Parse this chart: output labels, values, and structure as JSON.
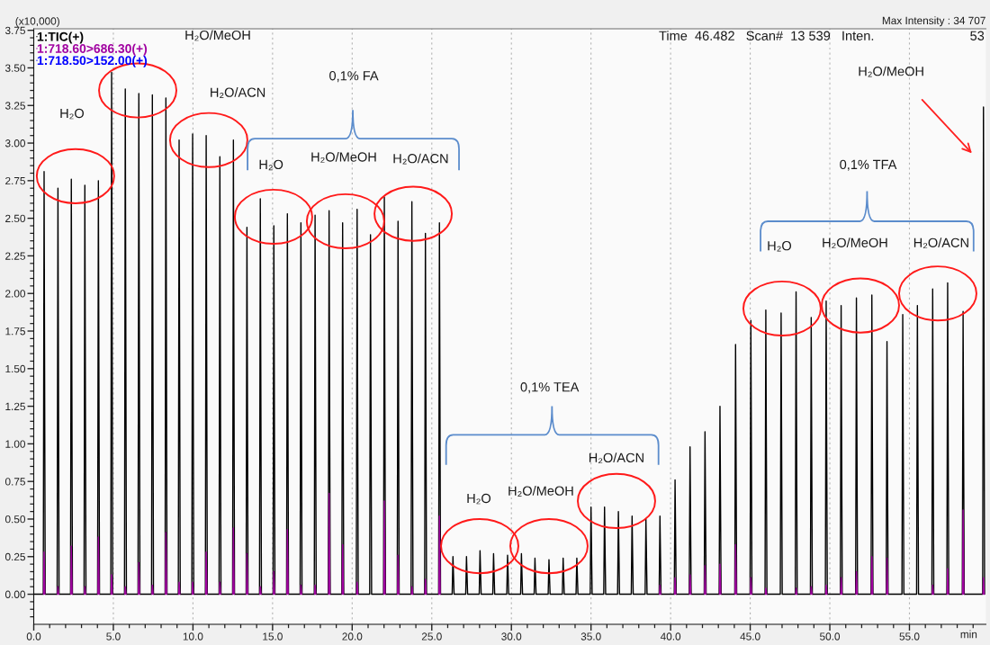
{
  "chart_data": {
    "type": "line",
    "xlim": [
      0,
      59.8
    ],
    "ylim": [
      -0.2,
      3.76
    ],
    "xticks": [
      {
        "value": 0,
        "label": "0.0"
      },
      {
        "value": 5,
        "label": "5.0"
      },
      {
        "value": 10,
        "label": "10.0"
      },
      {
        "value": 15,
        "label": "15.0"
      },
      {
        "value": 20,
        "label": "20.0"
      },
      {
        "value": 25,
        "label": "25.0"
      },
      {
        "value": 30,
        "label": "30.0"
      },
      {
        "value": 35,
        "label": "35.0"
      },
      {
        "value": 40,
        "label": "40.0"
      },
      {
        "value": 45,
        "label": "45.0"
      },
      {
        "value": 50,
        "label": "50.0"
      },
      {
        "value": 55,
        "label": "55.0"
      },
      {
        "value": 1,
        "label": null
      },
      {
        "value": 2,
        "label": null
      },
      {
        "value": 3,
        "label": null
      },
      {
        "value": 4,
        "label": null
      },
      {
        "value": 6,
        "label": null
      },
      {
        "value": 7,
        "label": null
      },
      {
        "value": 8,
        "label": null
      },
      {
        "value": 9,
        "label": null
      },
      {
        "value": 11,
        "label": null
      },
      {
        "value": 12,
        "label": null
      },
      {
        "value": 13,
        "label": null
      },
      {
        "value": 14,
        "label": null
      },
      {
        "value": 16,
        "label": null
      },
      {
        "value": 17,
        "label": null
      },
      {
        "value": 18,
        "label": null
      },
      {
        "value": 19,
        "label": null
      },
      {
        "value": 21,
        "label": null
      },
      {
        "value": 22,
        "label": null
      },
      {
        "value": 23,
        "label": null
      },
      {
        "value": 24,
        "label": null
      },
      {
        "value": 26,
        "label": null
      },
      {
        "value": 27,
        "label": null
      },
      {
        "value": 28,
        "label": null
      },
      {
        "value": 29,
        "label": null
      },
      {
        "value": 31,
        "label": null
      },
      {
        "value": 32,
        "label": null
      },
      {
        "value": 33,
        "label": null
      },
      {
        "value": 34,
        "label": null
      },
      {
        "value": 36,
        "label": null
      },
      {
        "value": 37,
        "label": null
      },
      {
        "value": 38,
        "label": null
      },
      {
        "value": 39,
        "label": null
      },
      {
        "value": 41,
        "label": null
      },
      {
        "value": 42,
        "label": null
      },
      {
        "value": 43,
        "label": null
      },
      {
        "value": 44,
        "label": null
      },
      {
        "value": 46,
        "label": null
      },
      {
        "value": 47,
        "label": null
      },
      {
        "value": 48,
        "label": null
      },
      {
        "value": 49,
        "label": null
      },
      {
        "value": 51,
        "label": null
      },
      {
        "value": 52,
        "label": null
      },
      {
        "value": 53,
        "label": null
      },
      {
        "value": 54,
        "label": null
      },
      {
        "value": 56,
        "label": null
      },
      {
        "value": 57,
        "label": null
      },
      {
        "value": 58,
        "label": null
      },
      {
        "value": 59,
        "label": null
      }
    ],
    "yticks": [
      {
        "value": 0,
        "label": "0.00"
      },
      {
        "value": 0.25,
        "label": "0.25"
      },
      {
        "value": 0.5,
        "label": "0.50"
      },
      {
        "value": 0.75,
        "label": "0.75"
      },
      {
        "value": 1,
        "label": "1.00"
      },
      {
        "value": 1.25,
        "label": "1.25"
      },
      {
        "value": 1.5,
        "label": "1.50"
      },
      {
        "value": 1.75,
        "label": "1.75"
      },
      {
        "value": 2,
        "label": "2.00"
      },
      {
        "value": 2.25,
        "label": "2.25"
      },
      {
        "value": 2.5,
        "label": "2.50"
      },
      {
        "value": 2.75,
        "label": "2.75"
      },
      {
        "value": 3,
        "label": "3.00"
      },
      {
        "value": 3.25,
        "label": "3.25"
      },
      {
        "value": 3.5,
        "label": "3.50"
      },
      {
        "value": 3.75,
        "label": "3.75"
      },
      {
        "value": -0.15,
        "label": null
      },
      {
        "value": -0.1,
        "label": null
      },
      {
        "value": -0.05,
        "label": null
      },
      {
        "value": 0.05,
        "label": null
      },
      {
        "value": 0.1,
        "label": null
      },
      {
        "value": 0.15,
        "label": null
      },
      {
        "value": 0.2,
        "label": null
      },
      {
        "value": 0.3,
        "label": null
      },
      {
        "value": 0.35,
        "label": null
      },
      {
        "value": 0.4,
        "label": null
      },
      {
        "value": 0.45,
        "label": null
      },
      {
        "value": 0.55,
        "label": null
      },
      {
        "value": 0.6,
        "label": null
      },
      {
        "value": 0.65,
        "label": null
      },
      {
        "value": 0.7,
        "label": null
      },
      {
        "value": 0.8,
        "label": null
      },
      {
        "value": 0.85,
        "label": null
      },
      {
        "value": 0.9,
        "label": null
      },
      {
        "value": 0.95,
        "label": null
      },
      {
        "value": 1.05,
        "label": null
      },
      {
        "value": 1.1,
        "label": null
      },
      {
        "value": 1.15,
        "label": null
      },
      {
        "value": 1.2,
        "label": null
      },
      {
        "value": 1.3,
        "label": null
      },
      {
        "value": 1.35,
        "label": null
      },
      {
        "value": 1.4,
        "label": null
      },
      {
        "value": 1.45,
        "label": null
      },
      {
        "value": 1.55,
        "label": null
      },
      {
        "value": 1.6,
        "label": null
      },
      {
        "value": 1.65,
        "label": null
      },
      {
        "value": 1.7,
        "label": null
      },
      {
        "value": 1.8,
        "label": null
      },
      {
        "value": 1.85,
        "label": null
      },
      {
        "value": 1.9,
        "label": null
      },
      {
        "value": 1.95,
        "label": null
      },
      {
        "value": 2.05,
        "label": null
      },
      {
        "value": 2.1,
        "label": null
      },
      {
        "value": 2.15,
        "label": null
      },
      {
        "value": 2.2,
        "label": null
      },
      {
        "value": 2.3,
        "label": null
      },
      {
        "value": 2.35,
        "label": null
      },
      {
        "value": 2.4,
        "label": null
      },
      {
        "value": 2.45,
        "label": null
      },
      {
        "value": 2.55,
        "label": null
      },
      {
        "value": 2.6,
        "label": null
      },
      {
        "value": 2.65,
        "label": null
      },
      {
        "value": 2.7,
        "label": null
      },
      {
        "value": 2.8,
        "label": null
      },
      {
        "value": 2.85,
        "label": null
      },
      {
        "value": 2.9,
        "label": null
      },
      {
        "value": 2.95,
        "label": null
      },
      {
        "value": 3.05,
        "label": null
      },
      {
        "value": 3.1,
        "label": null
      },
      {
        "value": 3.15,
        "label": null
      },
      {
        "value": 3.2,
        "label": null
      },
      {
        "value": 3.3,
        "label": null
      },
      {
        "value": 3.35,
        "label": null
      },
      {
        "value": 3.4,
        "label": null
      },
      {
        "value": 3.45,
        "label": null
      },
      {
        "value": 3.55,
        "label": null
      },
      {
        "value": 3.6,
        "label": null
      },
      {
        "value": 3.65,
        "label": null
      },
      {
        "value": 3.7,
        "label": null
      }
    ],
    "xlabel": "min",
    "ylabel": "(x10,000)",
    "grid": "x",
    "legend": "top left",
    "series": [
      {
        "name": "1:TIC(+)",
        "color": "#000000",
        "x": [
          0,
          0.6,
          0.65,
          0.72,
          1.47,
          1.52,
          1.59,
          2.31,
          2.36,
          2.43,
          3.16,
          3.21,
          3.28,
          4.01,
          4.06,
          4.13,
          4.84,
          4.89,
          4.96,
          5.7,
          5.75,
          5.82,
          6.55,
          6.6,
          6.67,
          7.4,
          7.45,
          7.52,
          8.25,
          8.3,
          8.37,
          9.08,
          9.13,
          9.2,
          9.93,
          9.98,
          10.05,
          10.78,
          10.83,
          10.9,
          11.64,
          11.69,
          11.76,
          12.49,
          12.54,
          12.61,
          13.34,
          13.39,
          13.46,
          14.18,
          14.23,
          14.3,
          15.03,
          15.08,
          15.15,
          15.88,
          15.93,
          16.0,
          16.73,
          16.78,
          16.85,
          17.62,
          17.67,
          17.74,
          18.5,
          18.55,
          18.62,
          19.35,
          19.4,
          19.47,
          20.26,
          20.31,
          20.38,
          21.1,
          21.15,
          21.22,
          21.97,
          22.02,
          22.09,
          22.83,
          22.88,
          22.95,
          23.7,
          23.75,
          23.82,
          24.55,
          24.6,
          24.67,
          25.43,
          25.48,
          25.55,
          26.28,
          26.33,
          26.4,
          27.13,
          27.18,
          27.25,
          27.98,
          28.03,
          28.1,
          28.83,
          28.88,
          28.95,
          29.71,
          29.76,
          29.83,
          30.58,
          30.63,
          30.7,
          31.43,
          31.48,
          31.55,
          32.31,
          32.36,
          32.43,
          33.2,
          33.25,
          33.32,
          34.06,
          34.11,
          34.18,
          34.95,
          35.0,
          35.07,
          35.8,
          35.85,
          35.92,
          36.67,
          36.72,
          36.79,
          37.53,
          37.58,
          37.65,
          38.4,
          38.45,
          38.52,
          39.28,
          39.33,
          39.4,
          40.23,
          40.28,
          40.35,
          41.17,
          41.22,
          41.29,
          42.11,
          42.16,
          42.23,
          43.05,
          43.1,
          43.17,
          44.03,
          44.08,
          44.15,
          44.99,
          45.04,
          45.11,
          45.93,
          45.98,
          46.05,
          46.89,
          46.94,
          47.01,
          47.83,
          47.88,
          47.95,
          48.78,
          48.83,
          48.9,
          49.72,
          49.77,
          49.84,
          50.66,
          50.71,
          50.78,
          51.62,
          51.67,
          51.74,
          52.59,
          52.64,
          52.71,
          53.54,
          53.59,
          53.66,
          54.53,
          54.58,
          54.65,
          55.45,
          55.5,
          55.57,
          56.41,
          56.46,
          56.53,
          57.35,
          57.4,
          57.47,
          58.32,
          58.37,
          58.44,
          59.6,
          59.65,
          59.72
        ],
        "values": [
          0,
          0,
          2.81,
          0,
          0,
          2.7,
          0,
          0,
          2.76,
          0,
          0,
          2.72,
          0,
          0,
          2.75,
          0,
          0,
          3.47,
          0,
          0,
          3.36,
          0,
          0,
          3.33,
          0,
          0,
          3.32,
          0,
          0,
          3.3,
          0,
          0,
          3.02,
          0,
          0,
          3.06,
          0,
          0,
          3.05,
          0,
          0,
          2.91,
          0,
          0,
          3.02,
          0,
          0,
          2.44,
          0,
          0,
          2.63,
          0,
          0,
          2.45,
          0,
          0,
          2.53,
          0,
          0,
          2.47,
          0,
          0,
          2.52,
          0,
          0,
          2.55,
          0,
          0,
          2.47,
          0,
          0,
          2.56,
          0,
          0,
          2.39,
          0,
          0,
          2.64,
          0,
          0,
          2.48,
          0,
          0,
          2.61,
          0,
          0,
          2.4,
          0,
          0,
          2.47,
          0,
          0,
          0.25,
          0,
          0,
          0.25,
          0,
          0,
          0.29,
          0,
          0,
          0.27,
          0,
          0,
          0.26,
          0,
          0,
          0.27,
          0,
          0,
          0.24,
          0,
          0,
          0.23,
          0,
          0,
          0.24,
          0,
          0,
          0.24,
          0,
          0,
          0.58,
          0,
          0,
          0.58,
          0,
          0,
          0.55,
          0,
          0,
          0.52,
          0,
          0,
          0.5,
          0,
          0,
          0.52,
          0,
          0,
          0.76,
          0,
          0,
          0.98,
          0,
          0,
          1.08,
          0,
          0,
          1.25,
          0,
          0,
          1.66,
          0,
          0,
          1.82,
          0,
          0,
          1.89,
          0,
          0,
          1.87,
          0,
          0,
          2.01,
          0,
          0,
          1.84,
          0,
          0,
          1.95,
          0,
          0,
          1.92,
          0,
          0,
          1.97,
          0,
          0,
          1.99,
          0,
          0,
          1.68,
          0,
          0,
          1.86,
          0,
          0,
          1.92,
          0,
          0,
          2.03,
          0,
          0,
          2.07,
          0,
          0,
          1.88,
          0,
          0,
          3.24,
          0
        ]
      },
      {
        "name": "1:718.60>686.30(+)",
        "color": "#a000a0",
        "x": [
          0.62,
          0.65,
          0.7,
          0.71,
          1.49,
          1.52,
          1.57,
          1.58,
          2.33,
          2.36,
          2.41,
          2.42,
          3.18,
          3.21,
          3.26,
          3.27,
          4.03,
          4.06,
          4.11,
          4.12,
          4.86,
          4.89,
          4.94,
          4.95,
          5.72,
          5.75,
          5.8,
          5.81,
          6.57,
          6.6,
          6.65,
          6.66,
          7.42,
          7.45,
          7.5,
          7.51,
          8.27,
          8.3,
          8.35,
          8.36,
          9.1,
          9.13,
          9.18,
          9.19,
          9.95,
          9.98,
          10.03,
          10.04,
          10.8,
          10.83,
          10.88,
          10.89,
          11.66,
          11.69,
          11.74,
          11.75,
          12.51,
          12.54,
          12.59,
          12.6,
          13.36,
          13.39,
          13.44,
          13.45,
          14.2,
          14.23,
          14.28,
          14.29,
          15.05,
          15.08,
          15.13,
          15.14,
          15.9,
          15.93,
          15.98,
          15.99,
          16.75,
          16.78,
          16.83,
          16.84,
          17.64,
          17.67,
          17.72,
          17.73,
          18.52,
          18.55,
          18.6,
          18.61,
          19.37,
          19.4,
          19.45,
          19.46,
          20.28,
          20.31,
          20.36,
          20.37,
          21.99,
          22.02,
          22.07,
          22.08,
          22.85,
          22.88,
          22.93,
          22.94,
          23.72,
          23.75,
          23.8,
          23.81,
          24.57,
          24.6,
          24.65,
          24.66,
          25.45,
          25.48,
          25.53,
          25.54,
          39.3,
          39.33,
          39.38,
          39.39,
          40.25,
          40.28,
          40.33,
          40.34,
          41.19,
          41.22,
          41.27,
          41.28,
          42.13,
          42.16,
          42.21,
          42.22,
          43.07,
          43.1,
          43.15,
          43.16,
          44.05,
          44.08,
          44.13,
          44.14,
          45.01,
          45.04,
          45.09,
          45.1,
          45.95,
          45.98,
          46.03,
          46.04,
          47.85,
          47.88,
          47.93,
          47.94,
          48.8,
          48.83,
          48.88,
          48.89,
          49.74,
          49.77,
          49.82,
          49.83,
          50.68,
          50.71,
          50.76,
          50.77,
          51.64,
          51.67,
          51.72,
          51.73,
          52.61,
          52.64,
          52.69,
          52.7,
          53.56,
          53.59,
          53.64,
          53.65,
          56.43,
          56.46,
          56.51,
          56.52,
          57.37,
          57.4,
          57.45,
          57.46,
          58.34,
          58.37,
          58.42,
          58.43,
          59.62,
          59.65,
          59.7
        ],
        "values": [
          0,
          0.28,
          0,
          null,
          0,
          0.05,
          0,
          null,
          0,
          0.32,
          0,
          null,
          0,
          0.05,
          0,
          null,
          0,
          0.38,
          0,
          null,
          0,
          0.13,
          0,
          null,
          0,
          0.05,
          0,
          null,
          0,
          0.21,
          0,
          null,
          0,
          0.06,
          0,
          null,
          0,
          0.41,
          0,
          null,
          0,
          0.08,
          0,
          null,
          0,
          0.08,
          0,
          null,
          0,
          0.28,
          0,
          null,
          0,
          0.08,
          0,
          null,
          0,
          0.44,
          0,
          null,
          0,
          0.27,
          0,
          null,
          0,
          0.05,
          0,
          null,
          0,
          0.15,
          0,
          null,
          0,
          0.43,
          0,
          null,
          0,
          0.06,
          0,
          null,
          0,
          0.06,
          0,
          null,
          0,
          0.67,
          0,
          null,
          0,
          0.33,
          0,
          null,
          0,
          0.08,
          0,
          null,
          0,
          0.62,
          0,
          null,
          0,
          0.26,
          0,
          null,
          0,
          0.05,
          0,
          null,
          0,
          0.1,
          0,
          null,
          0,
          0.52,
          0,
          null,
          0,
          0.06,
          0,
          null,
          0,
          0.11,
          0,
          null,
          0,
          0.13,
          0,
          null,
          0,
          0.19,
          0,
          null,
          0,
          0.2,
          0,
          null,
          0,
          0.33,
          0,
          null,
          0,
          0.11,
          0,
          null,
          0,
          0.04,
          0,
          null,
          0,
          0.04,
          0,
          null,
          0,
          0.05,
          0,
          null,
          0,
          0.06,
          0,
          null,
          0,
          0.11,
          0,
          null,
          0,
          0.15,
          0,
          null,
          0,
          0.25,
          0,
          null,
          0,
          0.24,
          0,
          null,
          0,
          0.06,
          0,
          null,
          0,
          0.17,
          0,
          null,
          0,
          0.56,
          0,
          null,
          0,
          0.11,
          0
        ]
      },
      {
        "name": "1:718.50>152.00(+)",
        "color": "#0000ff"
      }
    ],
    "annotations": [
      "Max Intensity : 34 707",
      "Time  46.482   Scan#  13 539   Inten.",
      "53",
      "H₂O",
      "H₂O/MeOH",
      "H₂O/ACN",
      "0,1% FA",
      "H₂O",
      "H₂O/MeOH",
      "H₂O/ACN",
      "0,1% TEA",
      "H₂O",
      "H₂O/MeOH",
      "H₂O/ACN",
      "H₂O/MeOH",
      "0,1% TFA",
      "H₂O",
      "H₂O/MeOH",
      "H₂O/ACN"
    ]
  }
}
